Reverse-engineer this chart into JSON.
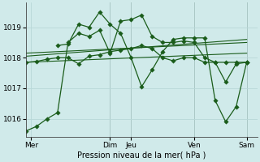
{
  "background_color": "#d0eaea",
  "grid_color": "#b8d8d8",
  "line_color": "#1a5c1a",
  "xlabel": "Pression niveau de la mer( hPa )",
  "yticks": [
    1016,
    1017,
    1018,
    1019
  ],
  "ylim": [
    1015.4,
    1019.8
  ],
  "xlim": [
    0,
    22
  ],
  "xtick_positions": [
    0.5,
    8,
    10,
    16,
    21
  ],
  "xtick_labels": [
    "Mer",
    "Dim",
    "Jeu",
    "Ven",
    "Sam"
  ],
  "vlines": [
    8,
    10,
    16,
    21
  ],
  "series1_x": [
    0,
    1,
    2,
    3,
    4,
    5,
    6,
    7,
    8,
    9,
    10,
    11,
    12,
    13,
    14,
    15,
    16,
    17,
    18,
    19,
    20,
    21
  ],
  "series1_y": [
    1015.6,
    1015.75,
    1016.0,
    1016.2,
    1018.5,
    1018.8,
    1018.7,
    1018.9,
    1018.15,
    1019.2,
    1019.25,
    1019.4,
    1018.7,
    1018.5,
    1018.5,
    1018.55,
    1018.5,
    1018.0,
    1017.85,
    1017.2,
    1017.8,
    1017.85
  ],
  "series2_x": [
    0,
    1,
    2,
    3,
    4,
    5,
    6,
    7,
    8,
    9,
    10,
    11,
    12,
    13,
    14,
    15,
    16,
    17,
    18,
    19,
    20,
    21
  ],
  "series2_y": [
    1017.85,
    1017.88,
    1017.95,
    1018.0,
    1018.0,
    1017.8,
    1018.05,
    1018.1,
    1018.2,
    1018.25,
    1018.3,
    1018.4,
    1018.3,
    1018.0,
    1017.9,
    1018.0,
    1018.0,
    1017.85,
    1017.85,
    1017.85,
    1017.85,
    1017.85
  ],
  "series3_x": [
    3,
    4,
    5,
    6,
    7,
    8,
    9,
    10,
    11,
    12,
    13,
    14,
    15,
    16,
    17,
    18,
    19,
    20,
    21
  ],
  "series3_y": [
    1018.4,
    1018.45,
    1019.1,
    1019.0,
    1019.5,
    1019.1,
    1018.8,
    1018.0,
    1017.05,
    1017.6,
    1018.2,
    1018.6,
    1018.65,
    1018.65,
    1018.65,
    1016.6,
    1015.9,
    1016.4,
    1017.85
  ],
  "trend1_x": [
    0,
    21
  ],
  "trend1_y": [
    1018.05,
    1018.6
  ],
  "trend2_x": [
    0,
    21
  ],
  "trend2_y": [
    1017.85,
    1018.15
  ],
  "trend3_x": [
    0,
    21
  ],
  "trend3_y": [
    1018.15,
    1018.5
  ]
}
